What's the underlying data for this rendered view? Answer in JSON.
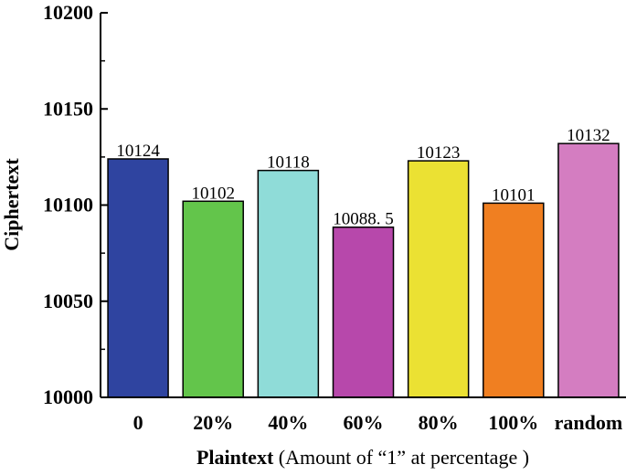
{
  "chart_data": {
    "type": "bar",
    "categories": [
      "0",
      "20%",
      "40%",
      "60%",
      "80%",
      "100%",
      "random"
    ],
    "values": [
      10124,
      10102,
      10118,
      10088.5,
      10123,
      10101,
      10132
    ],
    "value_labels": [
      "10124",
      "10102",
      "10118",
      "10088. 5",
      "10123",
      "10101",
      "10132"
    ],
    "colors": [
      "#2f44a0",
      "#63c54b",
      "#8fdcd8",
      "#b748ab",
      "#ebe133",
      "#f07f21",
      "#d47dc1"
    ],
    "ylabel": "Ciphertext",
    "xlabel_bold": "Plaintext",
    "xlabel_rest": " (Amount of “1” at percentage )",
    "ylim": [
      10000,
      10200
    ],
    "yticks": [
      10000,
      10050,
      10100,
      10150,
      10200
    ],
    "ytick_labels": [
      "10000",
      "10050",
      "10100",
      "10150",
      "10200"
    ],
    "grid": false
  }
}
